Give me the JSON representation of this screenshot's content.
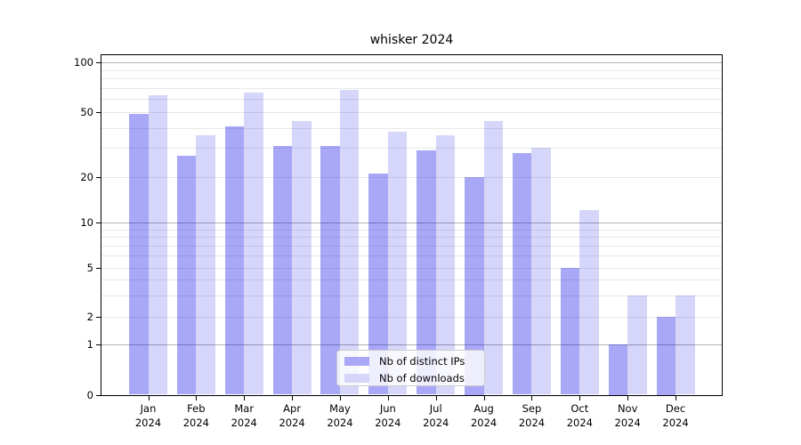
{
  "chart_data": {
    "type": "bar",
    "title": "whisker 2024",
    "categories": [
      "Jan 2024",
      "Feb 2024",
      "Mar 2024",
      "Apr 2024",
      "May 2024",
      "Jun 2024",
      "Jul 2024",
      "Aug 2024",
      "Sep 2024",
      "Oct 2024",
      "Nov 2024",
      "Dec 2024"
    ],
    "series": [
      {
        "name": "Nb of distinct IPs",
        "color": "#a8a8f7",
        "fill": "rgba(0,0,230,0.34)",
        "values": [
          49,
          27,
          41,
          31,
          31,
          21,
          29,
          20,
          28,
          5,
          1,
          2
        ]
      },
      {
        "name": "Nb of downloads",
        "color": "#d6d6fb",
        "fill": "rgba(0,0,230,0.16)",
        "values": [
          63,
          36,
          66,
          44,
          68,
          38,
          36,
          44,
          30,
          12,
          3,
          3
        ]
      }
    ],
    "yscale": "symlog",
    "ylim": [
      0,
      100
    ],
    "yticks": [
      0,
      1,
      2,
      5,
      10,
      20,
      50,
      100
    ],
    "minor_gridlines": [
      2,
      3,
      4,
      5,
      6,
      7,
      8,
      9,
      20,
      30,
      40,
      50,
      60,
      70,
      80,
      90
    ],
    "major_gridlines": [
      1,
      10,
      100
    ],
    "grid": true,
    "legend_position": "lower center"
  }
}
